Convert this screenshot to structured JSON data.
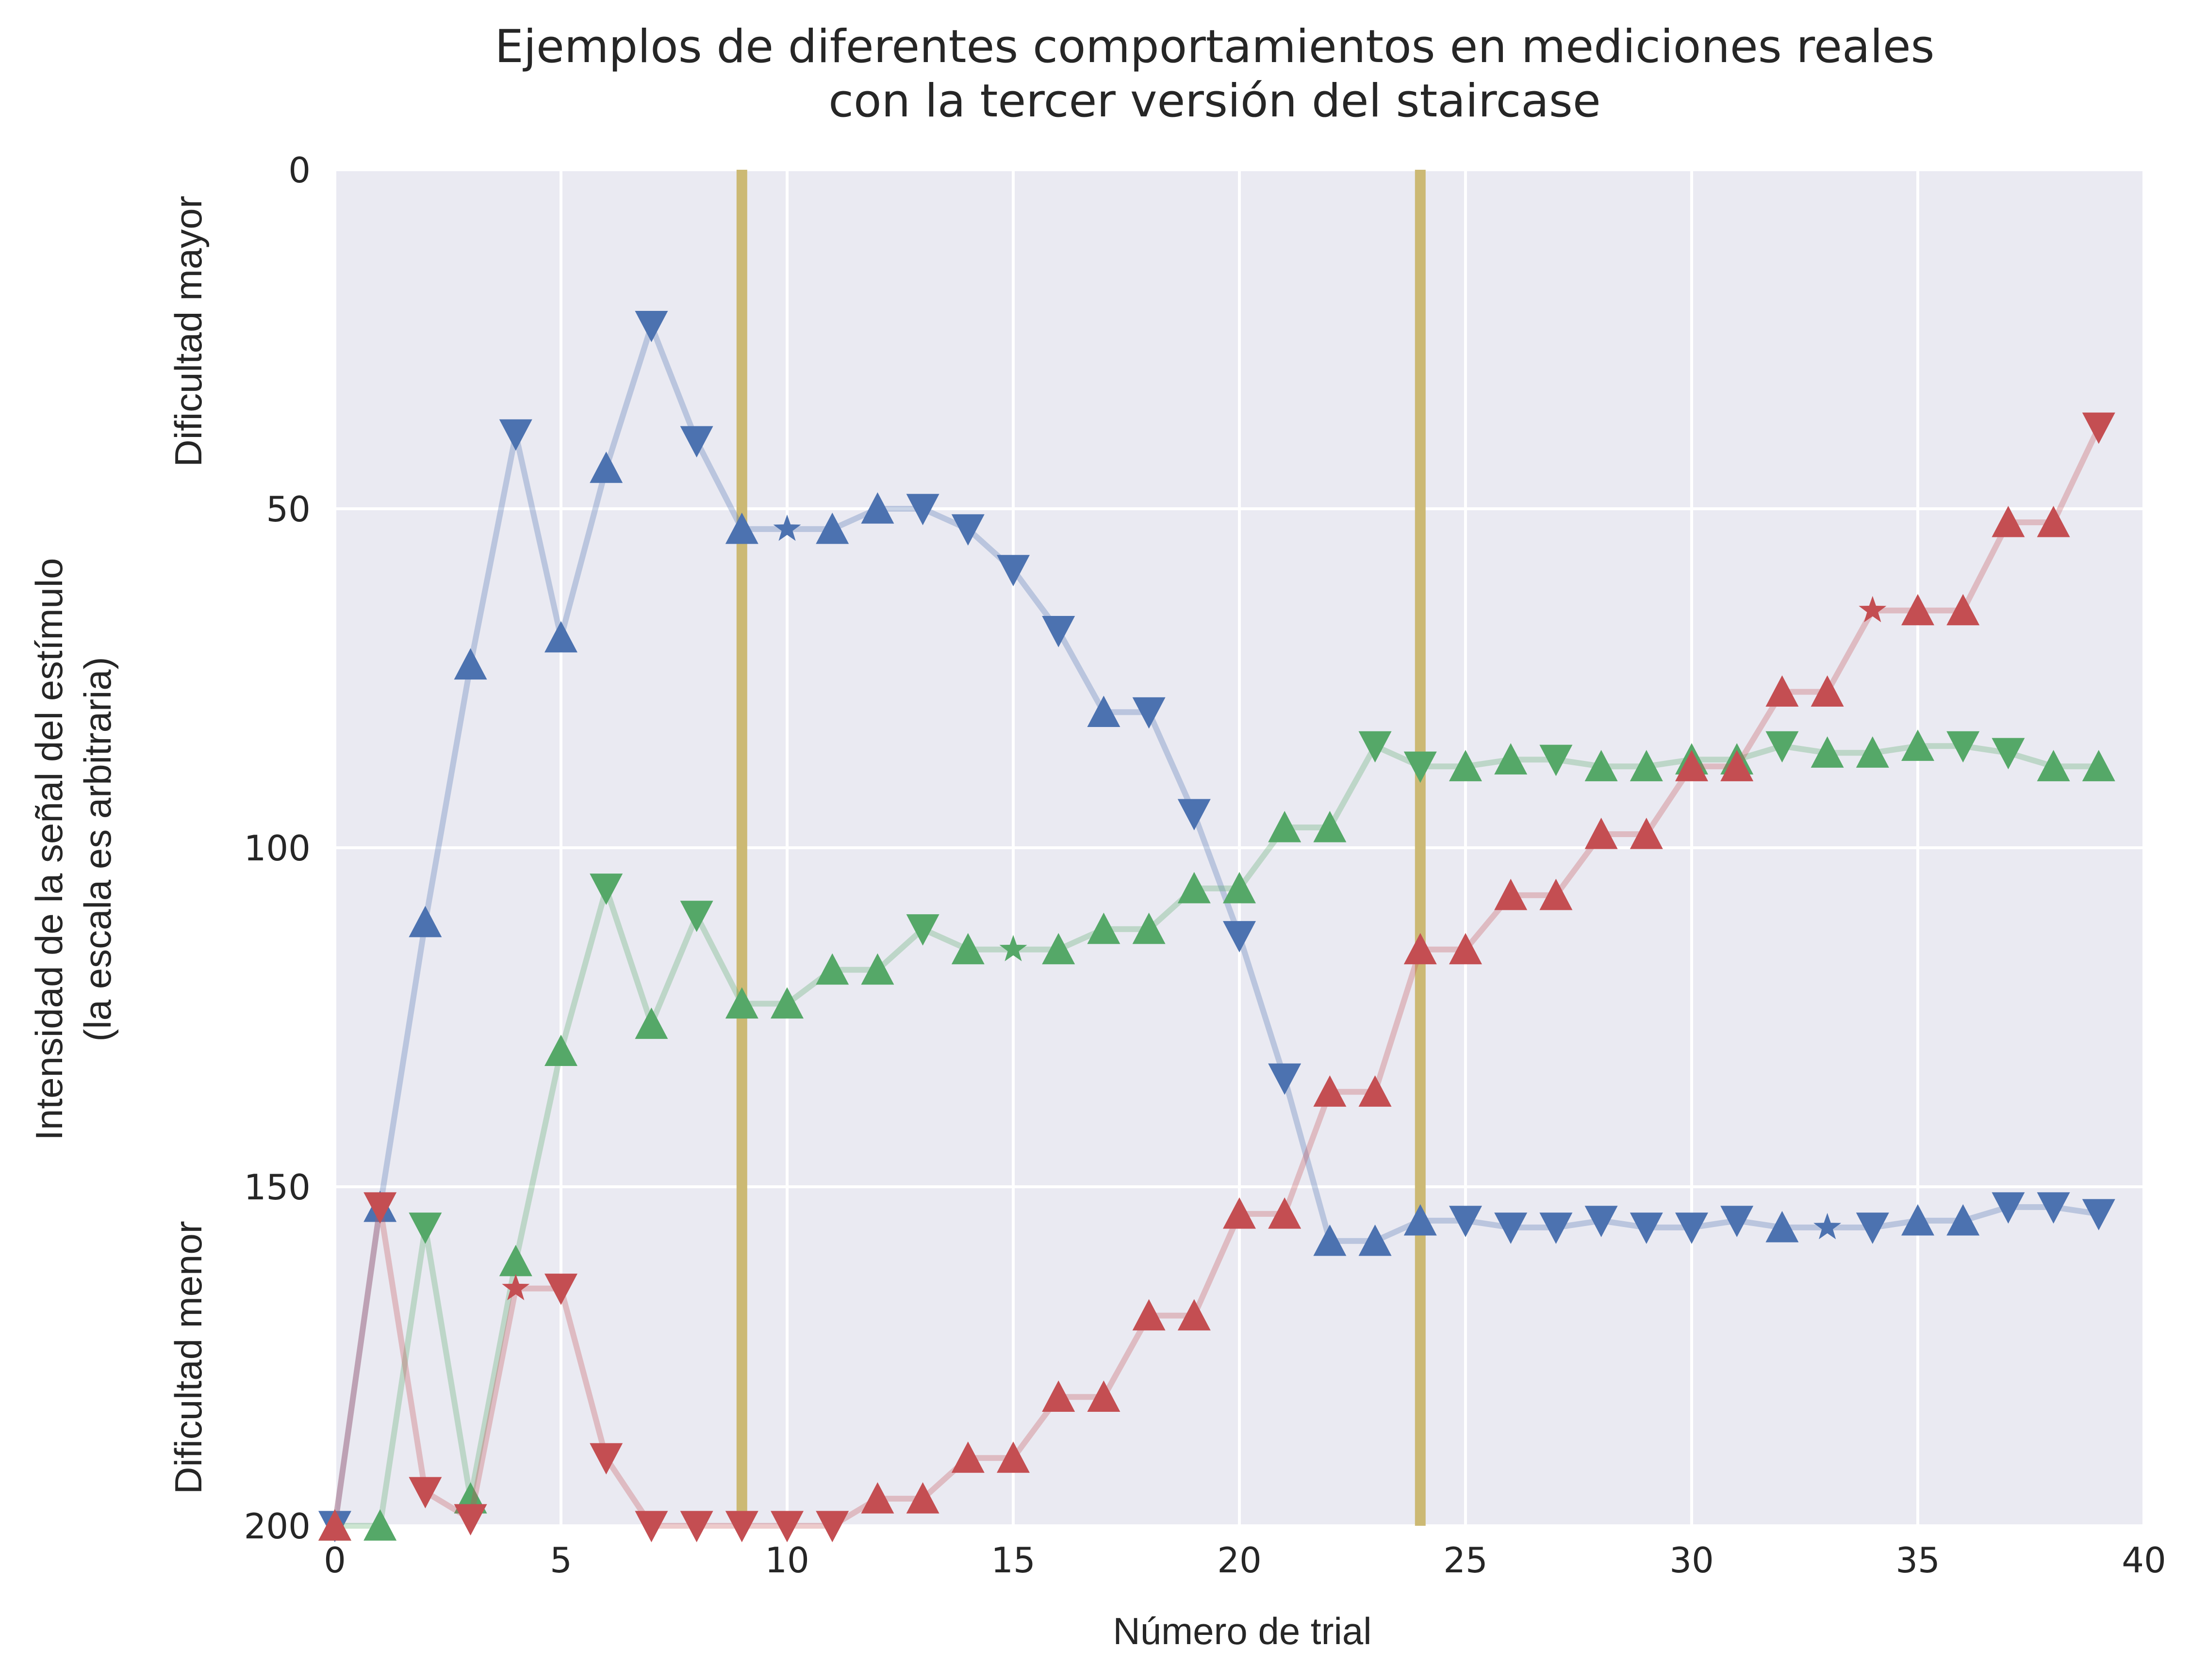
{
  "chart_data": {
    "type": "line",
    "title": [
      "Ejemplos de diferentes comportamientos en mediciones reales",
      "con la tercer versión del staircase"
    ],
    "xlabel": "Número de trial",
    "ylabel": [
      "Intensidad de la señal del estímulo",
      "(la escala es arbitraria)"
    ],
    "y_top_annotation": "Dificultad mayor",
    "y_bottom_annotation": "Dificultad menor",
    "xlim": [
      0,
      40
    ],
    "ylim": [
      200,
      0
    ],
    "y_inverted": true,
    "xticks": [
      0,
      5,
      10,
      15,
      20,
      25,
      30,
      35,
      40
    ],
    "yticks": [
      0,
      50,
      100,
      150,
      200
    ],
    "grid": true,
    "background": "#eaeaf2",
    "vertical_lines": [
      {
        "x": 9,
        "color": "#ccb974"
      },
      {
        "x": 24,
        "color": "#ccb974"
      }
    ],
    "series": [
      {
        "color": "#4c72b0",
        "points": [
          {
            "x": 0,
            "y": 200,
            "m": "v"
          },
          {
            "x": 1,
            "y": 153,
            "m": "^"
          },
          {
            "x": 2,
            "y": 111,
            "m": "^"
          },
          {
            "x": 3,
            "y": 73,
            "m": "^"
          },
          {
            "x": 4,
            "y": 39,
            "m": "v"
          },
          {
            "x": 5,
            "y": 69,
            "m": "^"
          },
          {
            "x": 6,
            "y": 44,
            "m": "^"
          },
          {
            "x": 7,
            "y": 23,
            "m": "v"
          },
          {
            "x": 8,
            "y": 40,
            "m": "v"
          },
          {
            "x": 9,
            "y": 53,
            "m": "^"
          },
          {
            "x": 10,
            "y": 53,
            "m": "*"
          },
          {
            "x": 11,
            "y": 53,
            "m": "^"
          },
          {
            "x": 12,
            "y": 50,
            "m": "^"
          },
          {
            "x": 13,
            "y": 50,
            "m": "v"
          },
          {
            "x": 14,
            "y": 53,
            "m": "v"
          },
          {
            "x": 15,
            "y": 59,
            "m": "v"
          },
          {
            "x": 16,
            "y": 68,
            "m": "v"
          },
          {
            "x": 17,
            "y": 80,
            "m": "^"
          },
          {
            "x": 18,
            "y": 80,
            "m": "v"
          },
          {
            "x": 19,
            "y": 95,
            "m": "v"
          },
          {
            "x": 20,
            "y": 113,
            "m": "v"
          },
          {
            "x": 21,
            "y": 134,
            "m": "v"
          },
          {
            "x": 22,
            "y": 158,
            "m": "^"
          },
          {
            "x": 23,
            "y": 158,
            "m": "^"
          },
          {
            "x": 24,
            "y": 155,
            "m": "^"
          },
          {
            "x": 25,
            "y": 155,
            "m": "v"
          },
          {
            "x": 26,
            "y": 156,
            "m": "v"
          },
          {
            "x": 27,
            "y": 156,
            "m": "v"
          },
          {
            "x": 28,
            "y": 155,
            "m": "v"
          },
          {
            "x": 29,
            "y": 156,
            "m": "v"
          },
          {
            "x": 30,
            "y": 156,
            "m": "v"
          },
          {
            "x": 31,
            "y": 155,
            "m": "v"
          },
          {
            "x": 32,
            "y": 156,
            "m": "^"
          },
          {
            "x": 33,
            "y": 156,
            "m": "*"
          },
          {
            "x": 34,
            "y": 156,
            "m": "v"
          },
          {
            "x": 35,
            "y": 155,
            "m": "^"
          },
          {
            "x": 36,
            "y": 155,
            "m": "^"
          },
          {
            "x": 37,
            "y": 153,
            "m": "v"
          },
          {
            "x": 38,
            "y": 153,
            "m": "v"
          },
          {
            "x": 39,
            "y": 154,
            "m": "v"
          }
        ]
      },
      {
        "color": "#55a868",
        "points": [
          {
            "x": 0,
            "y": 200,
            "m": "^"
          },
          {
            "x": 1,
            "y": 200,
            "m": "^"
          },
          {
            "x": 2,
            "y": 156,
            "m": "v"
          },
          {
            "x": 3,
            "y": 196,
            "m": "^"
          },
          {
            "x": 4,
            "y": 161,
            "m": "^"
          },
          {
            "x": 5,
            "y": 130,
            "m": "^"
          },
          {
            "x": 6,
            "y": 106,
            "m": "v"
          },
          {
            "x": 7,
            "y": 126,
            "m": "^"
          },
          {
            "x": 8,
            "y": 110,
            "m": "v"
          },
          {
            "x": 9,
            "y": 123,
            "m": "^"
          },
          {
            "x": 10,
            "y": 123,
            "m": "^"
          },
          {
            "x": 11,
            "y": 118,
            "m": "^"
          },
          {
            "x": 12,
            "y": 118,
            "m": "^"
          },
          {
            "x": 13,
            "y": 112,
            "m": "v"
          },
          {
            "x": 14,
            "y": 115,
            "m": "^"
          },
          {
            "x": 15,
            "y": 115,
            "m": "*"
          },
          {
            "x": 16,
            "y": 115,
            "m": "^"
          },
          {
            "x": 17,
            "y": 112,
            "m": "^"
          },
          {
            "x": 18,
            "y": 112,
            "m": "^"
          },
          {
            "x": 19,
            "y": 106,
            "m": "^"
          },
          {
            "x": 20,
            "y": 106,
            "m": "^"
          },
          {
            "x": 21,
            "y": 97,
            "m": "^"
          },
          {
            "x": 22,
            "y": 97,
            "m": "^"
          },
          {
            "x": 23,
            "y": 85,
            "m": "v"
          },
          {
            "x": 24,
            "y": 88,
            "m": "v"
          },
          {
            "x": 25,
            "y": 88,
            "m": "^"
          },
          {
            "x": 26,
            "y": 87,
            "m": "^"
          },
          {
            "x": 27,
            "y": 87,
            "m": "v"
          },
          {
            "x": 28,
            "y": 88,
            "m": "^"
          },
          {
            "x": 29,
            "y": 88,
            "m": "^"
          },
          {
            "x": 30,
            "y": 87,
            "m": "^"
          },
          {
            "x": 31,
            "y": 87,
            "m": "^"
          },
          {
            "x": 32,
            "y": 85,
            "m": "v"
          },
          {
            "x": 33,
            "y": 86,
            "m": "^"
          },
          {
            "x": 34,
            "y": 86,
            "m": "^"
          },
          {
            "x": 35,
            "y": 85,
            "m": "^"
          },
          {
            "x": 36,
            "y": 85,
            "m": "v"
          },
          {
            "x": 37,
            "y": 86,
            "m": "v"
          },
          {
            "x": 38,
            "y": 88,
            "m": "^"
          },
          {
            "x": 39,
            "y": 88,
            "m": "^"
          }
        ]
      },
      {
        "color": "#c44e52",
        "points": [
          {
            "x": 0,
            "y": 200,
            "m": "^"
          },
          {
            "x": 1,
            "y": 153,
            "m": "v"
          },
          {
            "x": 2,
            "y": 195,
            "m": "v"
          },
          {
            "x": 3,
            "y": 199,
            "m": "v"
          },
          {
            "x": 4,
            "y": 165,
            "m": "*"
          },
          {
            "x": 5,
            "y": 165,
            "m": "v"
          },
          {
            "x": 6,
            "y": 190,
            "m": "v"
          },
          {
            "x": 7,
            "y": 200,
            "m": "v"
          },
          {
            "x": 8,
            "y": 200,
            "m": "v"
          },
          {
            "x": 9,
            "y": 200,
            "m": "v"
          },
          {
            "x": 10,
            "y": 200,
            "m": "v"
          },
          {
            "x": 11,
            "y": 200,
            "m": "v"
          },
          {
            "x": 12,
            "y": 196,
            "m": "^"
          },
          {
            "x": 13,
            "y": 196,
            "m": "^"
          },
          {
            "x": 14,
            "y": 190,
            "m": "^"
          },
          {
            "x": 15,
            "y": 190,
            "m": "^"
          },
          {
            "x": 16,
            "y": 181,
            "m": "^"
          },
          {
            "x": 17,
            "y": 181,
            "m": "^"
          },
          {
            "x": 18,
            "y": 169,
            "m": "^"
          },
          {
            "x": 19,
            "y": 169,
            "m": "^"
          },
          {
            "x": 20,
            "y": 154,
            "m": "^"
          },
          {
            "x": 21,
            "y": 154,
            "m": "^"
          },
          {
            "x": 22,
            "y": 136,
            "m": "^"
          },
          {
            "x": 23,
            "y": 136,
            "m": "^"
          },
          {
            "x": 24,
            "y": 115,
            "m": "^"
          },
          {
            "x": 25,
            "y": 115,
            "m": "^"
          },
          {
            "x": 26,
            "y": 107,
            "m": "^"
          },
          {
            "x": 27,
            "y": 107,
            "m": "^"
          },
          {
            "x": 28,
            "y": 98,
            "m": "^"
          },
          {
            "x": 29,
            "y": 98,
            "m": "^"
          },
          {
            "x": 30,
            "y": 88,
            "m": "^"
          },
          {
            "x": 31,
            "y": 88,
            "m": "^"
          },
          {
            "x": 32,
            "y": 77,
            "m": "^"
          },
          {
            "x": 33,
            "y": 77,
            "m": "^"
          },
          {
            "x": 34,
            "y": 65,
            "m": "*"
          },
          {
            "x": 35,
            "y": 65,
            "m": "^"
          },
          {
            "x": 36,
            "y": 65,
            "m": "^"
          },
          {
            "x": 37,
            "y": 52,
            "m": "^"
          },
          {
            "x": 38,
            "y": 52,
            "m": "^"
          },
          {
            "x": 39,
            "y": 38,
            "m": "v"
          }
        ]
      }
    ]
  }
}
